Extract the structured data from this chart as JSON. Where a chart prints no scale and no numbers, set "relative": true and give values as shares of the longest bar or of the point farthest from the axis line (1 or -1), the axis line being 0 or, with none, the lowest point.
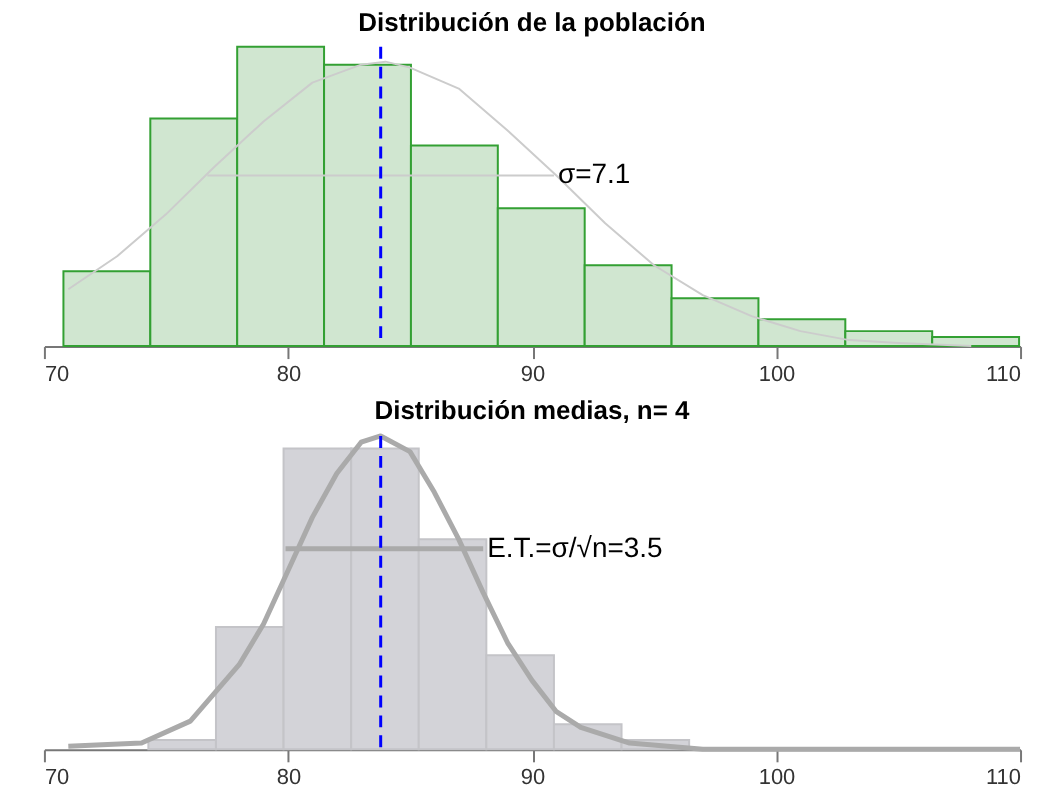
{
  "chart_data": [
    {
      "type": "histogram",
      "title": "Distribución de la población",
      "relative": true,
      "xlim": [
        70,
        110
      ],
      "xticks": [
        70,
        80,
        90,
        100,
        110
      ],
      "grid": false,
      "bins": [
        70.8,
        74.36,
        77.92,
        81.48,
        85.04,
        88.6,
        92.16,
        95.72,
        99.28,
        102.84,
        106.4,
        109.96
      ],
      "series": [
        {
          "color": "#d0e6d0",
          "values": [
            0.25,
            0.76,
            1,
            0.94,
            0.67,
            0.46,
            0.27,
            0.16,
            0.09,
            0.05,
            0.03
          ]
        },
        {
          "type": "line",
          "color": "#cccccc",
          "x": [
            71,
            73,
            75,
            77,
            79,
            81,
            83,
            84,
            85,
            87,
            89,
            91,
            93,
            95,
            97,
            99,
            101,
            103,
            105,
            108
          ],
          "values": [
            0.19,
            0.3,
            0.44,
            0.6,
            0.75,
            0.88,
            0.94,
            0.95,
            0.93,
            0.86,
            0.72,
            0.57,
            0.41,
            0.27,
            0.17,
            0.1,
            0.05,
            0.02,
            0.01,
            0.0
          ]
        },
        {
          "type": "line",
          "color": "#cccccc",
          "x": [
            76.7,
            90.9
          ],
          "values": [
            0.57,
            0.57
          ]
        }
      ],
      "ref_lines": [
        {
          "axis": "x",
          "value": 83.8,
          "color": "#0000ff",
          "line_style": "dashed"
        }
      ],
      "annotations": [
        "σ=7.1"
      ]
    },
    {
      "type": "histogram",
      "title": "Distribución medias, n= 4",
      "relative": true,
      "xlim": [
        70,
        110
      ],
      "xticks": [
        70,
        80,
        90,
        100,
        110
      ],
      "grid": false,
      "bins": [
        74.28,
        77.05,
        79.82,
        82.59,
        85.36,
        88.13,
        90.9,
        93.67,
        96.44
      ],
      "series": [
        {
          "color": "#d3d3d8",
          "values": [
            0.03,
            0.39,
            0.96,
            0.96,
            0.67,
            0.3,
            0.08,
            0.03
          ]
        },
        {
          "type": "line",
          "color": "#aaaaaa",
          "x": [
            71,
            74,
            76,
            78,
            79,
            80,
            81,
            82,
            83,
            83.8,
            85,
            86,
            87,
            88,
            89,
            90,
            91,
            92,
            94,
            97,
            100,
            110
          ],
          "values": [
            0.01,
            0.02,
            0.09,
            0.27,
            0.4,
            0.57,
            0.74,
            0.88,
            0.98,
            1,
            0.95,
            0.82,
            0.67,
            0.5,
            0.34,
            0.22,
            0.12,
            0.07,
            0.02,
            0.0,
            0.0,
            0.0
          ]
        },
        {
          "type": "line",
          "color": "#aaaaaa",
          "x": [
            79.9,
            88.0
          ],
          "values": [
            0.64,
            0.64
          ]
        }
      ],
      "ref_lines": [
        {
          "axis": "x",
          "value": 83.8,
          "color": "#0000ff",
          "line_style": "dashed"
        }
      ],
      "annotations": [
        "E.T.=σ/√n=3.5"
      ]
    }
  ]
}
